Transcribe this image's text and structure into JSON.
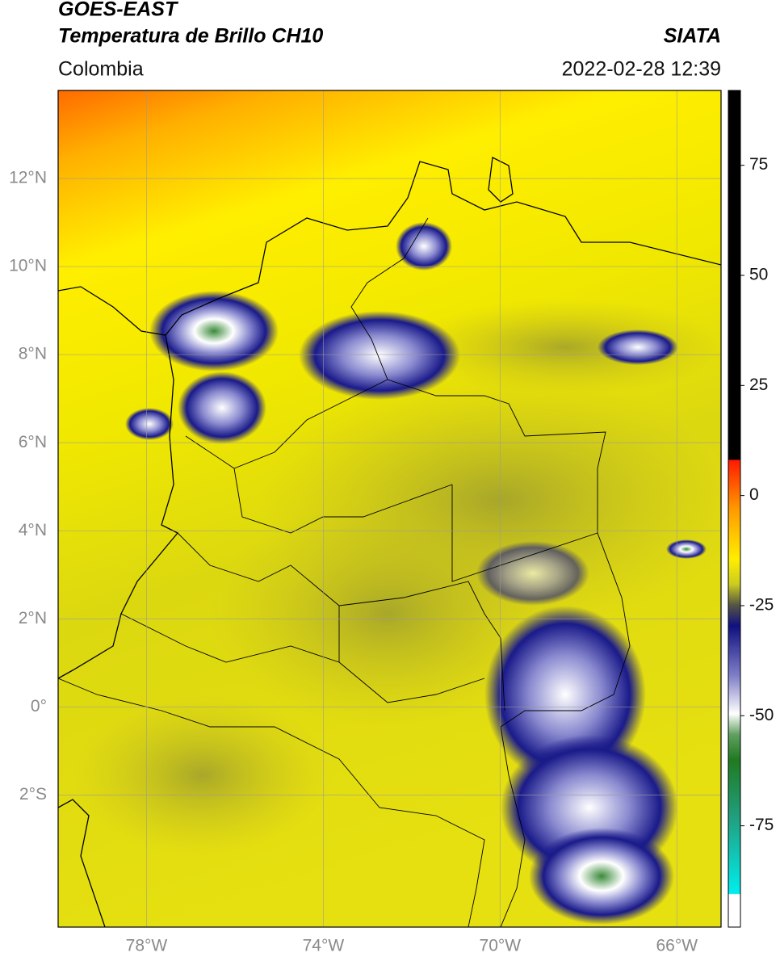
{
  "header": {
    "satellite": "GOES-EAST",
    "product": "Temperatura de Brillo CH10",
    "region": "Colombia",
    "agency": "SIATA",
    "datetime": "2022-02-28 12:39"
  },
  "map": {
    "xlim": [
      -80,
      -65
    ],
    "ylim": [
      -5,
      14
    ],
    "grid": true,
    "xticks": [
      {
        "value": -78,
        "label": "78°W"
      },
      {
        "value": -74,
        "label": "74°W"
      },
      {
        "value": -70,
        "label": "70°W"
      },
      {
        "value": -66,
        "label": "66°W"
      }
    ],
    "yticks": [
      {
        "value": 12,
        "label": "12°N"
      },
      {
        "value": 10,
        "label": "10°N"
      },
      {
        "value": 8,
        "label": "8°N"
      },
      {
        "value": 6,
        "label": "6°N"
      },
      {
        "value": 4,
        "label": "4°N"
      },
      {
        "value": 2,
        "label": "2°N"
      },
      {
        "value": 0,
        "label": "0°"
      },
      {
        "value": -2,
        "label": "2°S"
      }
    ]
  },
  "colorbar": {
    "lim": [
      -98,
      92
    ],
    "ticks": [
      75,
      50,
      25,
      0,
      -25,
      -50,
      -75
    ]
  }
}
